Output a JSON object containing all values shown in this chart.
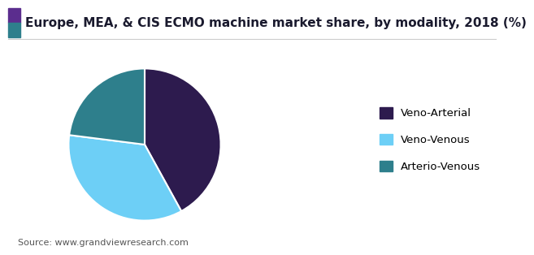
{
  "title": "Europe, MEA, & CIS ECMO machine market share, by modality, 2018 (%)",
  "labels": [
    "Veno-Arterial",
    "Veno-Venous",
    "Arterio-Venous"
  ],
  "values": [
    42,
    35,
    23
  ],
  "colors": [
    "#2d1b4e",
    "#6dcff6",
    "#2e7f8c"
  ],
  "startangle": 90,
  "source_text": "Source: www.grandviewresearch.com",
  "title_fontsize": 11,
  "legend_fontsize": 9.5,
  "source_fontsize": 8,
  "background_color": "#ffffff",
  "title_stripe_color1": "#5b2d8e",
  "title_stripe_color2": "#2e7f8c",
  "title_line_color": "#cccccc"
}
